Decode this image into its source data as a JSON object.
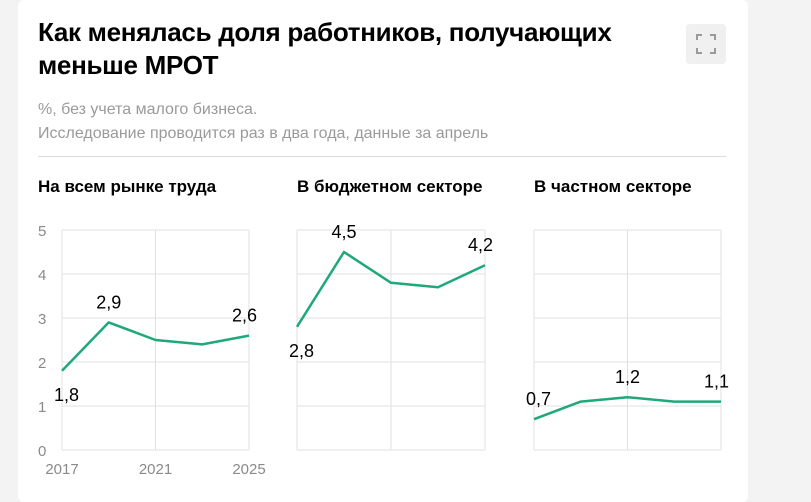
{
  "header": {
    "title": "Как менялась доля работников, получающих меньше МРОТ",
    "subtitle_line1": "%, без учета малого бизнеса.",
    "subtitle_line2": "Исследование проводится раз в два года, данные за апрель",
    "expand_icon": "expand-icon"
  },
  "colors": {
    "line": "#1fa87a",
    "grid": "#e0e0e0",
    "axis_text": "#8a8a8a",
    "label_text": "#000000"
  },
  "chart_data": [
    {
      "type": "line",
      "title": "На всем рынке труда",
      "x": [
        2017,
        2019,
        2021,
        2023,
        2025
      ],
      "values": [
        1.8,
        2.9,
        2.5,
        2.4,
        2.6
      ],
      "data_labels": [
        {
          "index": 0,
          "text": "1,8",
          "pos": "below"
        },
        {
          "index": 1,
          "text": "2,9",
          "pos": "above"
        },
        {
          "index": 4,
          "text": "2,6",
          "pos": "above"
        }
      ],
      "ylim": [
        0,
        5
      ],
      "yticks": [
        "0",
        "1",
        "2",
        "3",
        "4",
        "5"
      ],
      "xticks": [
        {
          "value": 2017,
          "label": "2017"
        },
        {
          "value": 2021,
          "label": "2021"
        },
        {
          "value": 2025,
          "label": "2025"
        }
      ]
    },
    {
      "type": "line",
      "title": "В бюджетном секторе",
      "x": [
        2017,
        2019,
        2021,
        2023,
        2025
      ],
      "values": [
        2.8,
        4.5,
        3.8,
        3.7,
        4.2
      ],
      "data_labels": [
        {
          "index": 0,
          "text": "2,8",
          "pos": "below"
        },
        {
          "index": 1,
          "text": "4,5",
          "pos": "above"
        },
        {
          "index": 4,
          "text": "4,2",
          "pos": "above"
        }
      ],
      "ylim": [
        0,
        5
      ]
    },
    {
      "type": "line",
      "title": "В частном секторе",
      "x": [
        2017,
        2019,
        2021,
        2023,
        2025
      ],
      "values": [
        0.7,
        1.1,
        1.2,
        1.1,
        1.1
      ],
      "data_labels": [
        {
          "index": 0,
          "text": "0,7",
          "pos": "above"
        },
        {
          "index": 2,
          "text": "1,2",
          "pos": "above"
        },
        {
          "index": 4,
          "text": "1,1",
          "pos": "above"
        }
      ],
      "ylim": [
        0,
        5
      ]
    }
  ]
}
